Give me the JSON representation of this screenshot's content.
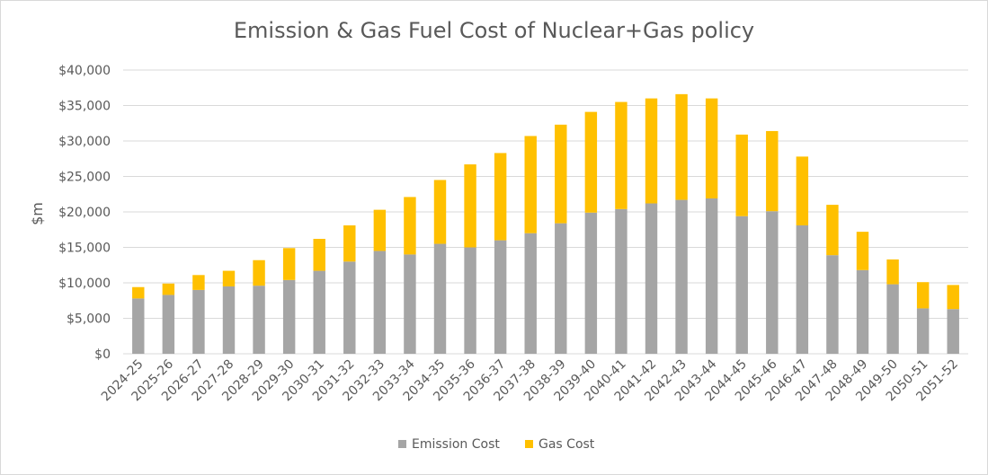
{
  "chart_data": {
    "type": "bar",
    "stacked": true,
    "title": "Emission & Gas Fuel Cost of Nuclear+Gas policy",
    "xlabel": "",
    "ylabel": "$m",
    "ylim": [
      0,
      40000
    ],
    "yticks": [
      0,
      5000,
      10000,
      15000,
      20000,
      25000,
      30000,
      35000,
      40000
    ],
    "ytick_labels": [
      "$0",
      "$5,000",
      "$10,000",
      "$15,000",
      "$20,000",
      "$25,000",
      "$30,000",
      "$35,000",
      "$40,000"
    ],
    "grid": true,
    "legend_position": "bottom",
    "categories": [
      "2024-25",
      "2025-26",
      "2026-27",
      "2027-28",
      "2028-29",
      "2029-30",
      "2030-31",
      "2031-32",
      "2032-33",
      "2033-34",
      "2034-35",
      "2035-36",
      "2036-37",
      "2037-38",
      "2038-39",
      "2039-40",
      "2040-41",
      "2041-42",
      "2042-43",
      "2043-44",
      "2044-45",
      "2045-46",
      "2046-47",
      "2047-48",
      "2048-49",
      "2049-50",
      "2050-51",
      "2051-52"
    ],
    "series": [
      {
        "name": "Emission Cost",
        "color": "#a5a5a5",
        "values": [
          7800,
          8300,
          9000,
          9500,
          9600,
          10400,
          11700,
          13000,
          14500,
          14000,
          15500,
          15000,
          16000,
          17000,
          18400,
          19900,
          20400,
          21200,
          21700,
          21900,
          19400,
          20100,
          18100,
          13900,
          11800,
          9800,
          6400,
          6300
        ]
      },
      {
        "name": "Gas Cost",
        "color": "#ffc000",
        "values": [
          1600,
          1600,
          2100,
          2200,
          3600,
          4500,
          4500,
          5100,
          5800,
          8100,
          9000,
          11700,
          12300,
          13700,
          13900,
          14200,
          15100,
          14800,
          14900,
          14100,
          11500,
          11300,
          9700,
          7100,
          5400,
          3500,
          3700,
          3400
        ]
      }
    ]
  }
}
